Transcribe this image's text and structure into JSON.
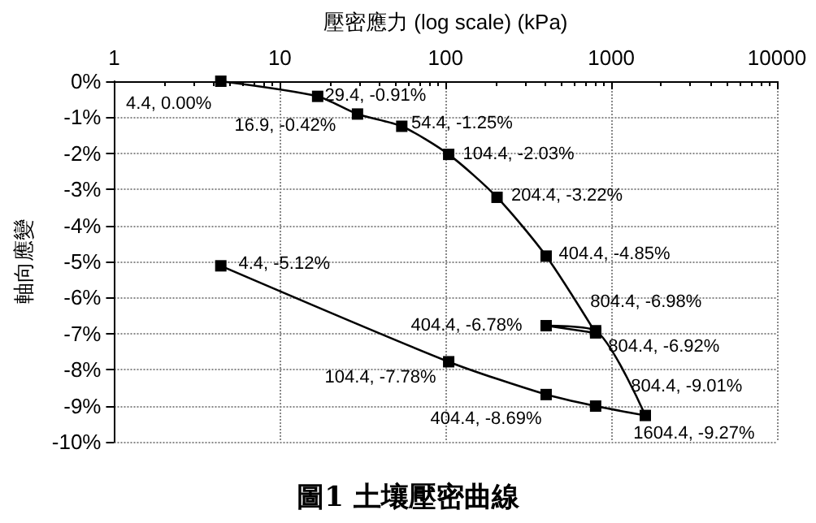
{
  "chart_data": {
    "type": "line",
    "title": "圖1 土壤壓密曲線",
    "xlabel": "壓密應力 (log scale) (kPa)",
    "ylabel": "軸向應變",
    "x": [
      4.4,
      16.9,
      29.4,
      54.4,
      104.4,
      204.4,
      404.4,
      804.4,
      404.4,
      804.4,
      1604.4,
      804.4,
      404.4,
      104.4,
      4.4
    ],
    "series": [
      {
        "color": "#000000",
        "values": [
          0,
          -0.42,
          -0.91,
          -1.25,
          -2.03,
          -3.22,
          -4.85,
          -6.98,
          -6.78,
          -6.92,
          -9.27,
          -9.01,
          -8.69,
          -7.78,
          -5.12
        ],
        "value_labels": [
          "4.4, 0.00%",
          "16.9, -0.42%",
          "29.4, -0.91%",
          "54.4, -1.25%",
          "104.4, -2.03%",
          "204.4, -3.22%",
          "404.4, -4.85%",
          "804.4, -6.98%",
          "404.4, -6.78%",
          "804.4, -6.92%",
          "1604.4, -9.27%",
          "804.4, -9.01%",
          "404.4, -8.69%",
          "104.4, -7.78%",
          "4.4, -5.12%"
        ]
      }
    ],
    "log": "x",
    "xlim": [
      1,
      10000
    ],
    "xticks": [
      1,
      10,
      100,
      1000,
      10000
    ],
    "ylim": [
      -10,
      0
    ],
    "yticks": [
      {
        "value": 0,
        "label": "0%"
      },
      {
        "value": -1,
        "label": "-1%"
      },
      {
        "value": -2,
        "label": "-2%"
      },
      {
        "value": -3,
        "label": "-3%"
      },
      {
        "value": -4,
        "label": "-4%"
      },
      {
        "value": -5,
        "label": "-5%"
      },
      {
        "value": -6,
        "label": "-6%"
      },
      {
        "value": -7,
        "label": "-7%"
      },
      {
        "value": -8,
        "label": "-8%"
      },
      {
        "value": -9,
        "label": "-9%"
      },
      {
        "value": -10,
        "label": "-10%"
      }
    ],
    "grid": true,
    "marker": "square",
    "line_style": "solid"
  }
}
